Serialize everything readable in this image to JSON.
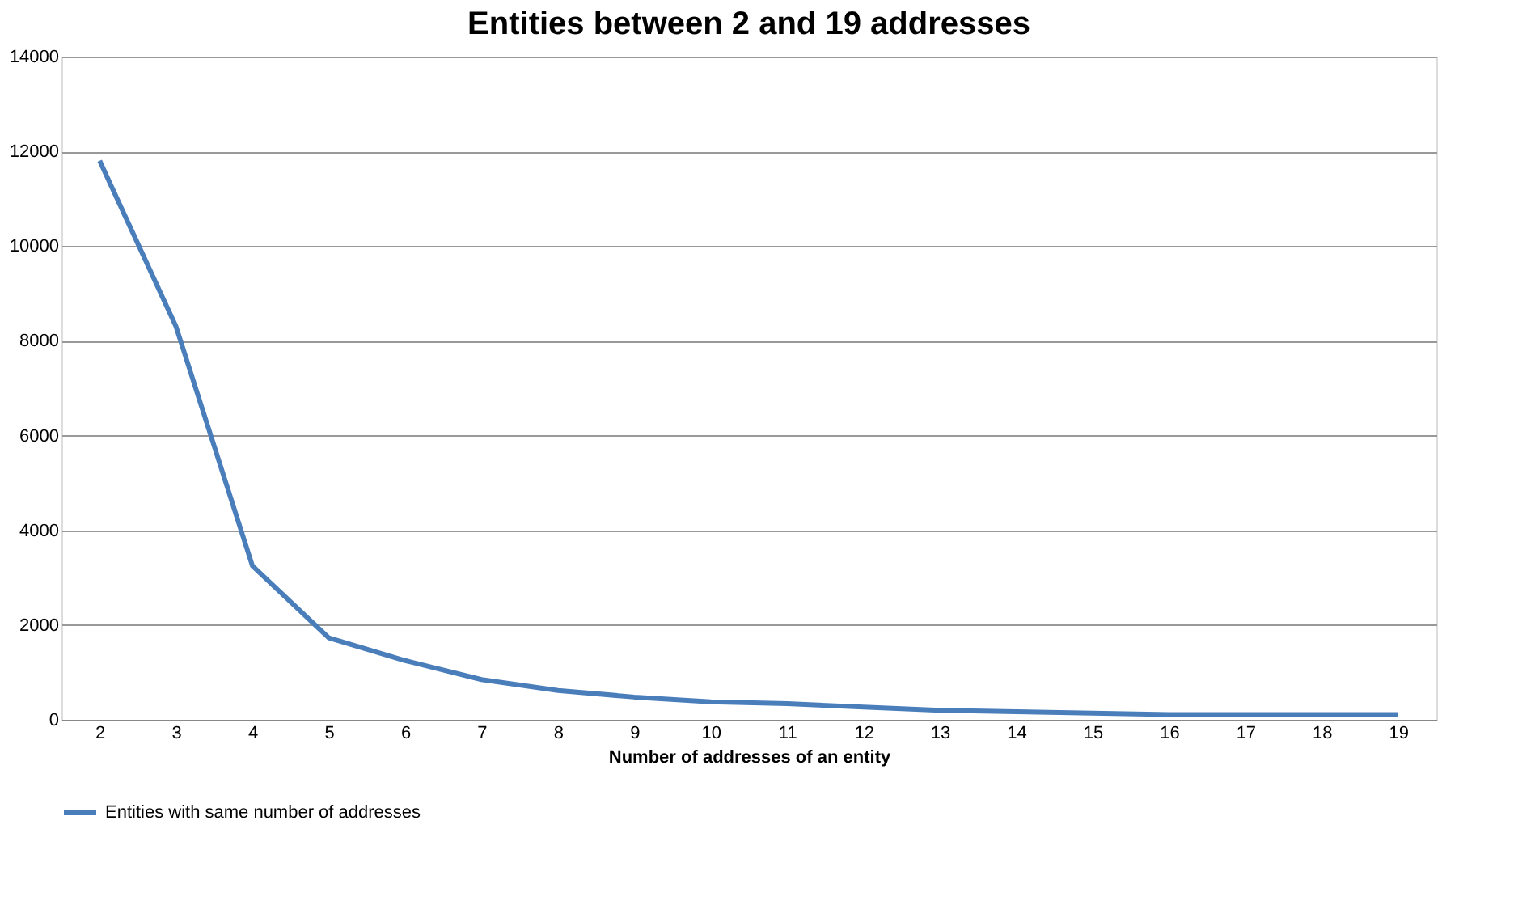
{
  "chart_data": {
    "type": "line",
    "title": "Entities between 2 and 19 addresses",
    "xlabel": "Number of addresses of an entity",
    "categories": [
      "2",
      "3",
      "4",
      "5",
      "6",
      "7",
      "8",
      "9",
      "10",
      "11",
      "12",
      "13",
      "14",
      "15",
      "16",
      "17",
      "18",
      "19"
    ],
    "series": [
      {
        "name": "Entities with  same number of addresses",
        "color": "#4a7ebb",
        "values": [
          11800,
          8300,
          3250,
          1730,
          1250,
          850,
          620,
          480,
          380,
          340,
          270,
          200,
          170,
          140,
          110,
          110,
          110,
          110
        ]
      }
    ],
    "ylim": [
      0,
      14000
    ],
    "yticks": [
      0,
      2000,
      4000,
      6000,
      8000,
      10000,
      12000,
      14000
    ],
    "grid": "y",
    "legend": "bottom",
    "marker": "none",
    "line_style": "solid"
  }
}
